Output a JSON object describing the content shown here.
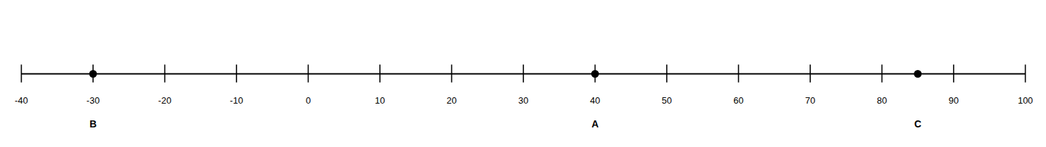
{
  "chart_data": {
    "type": "dot",
    "x": [
      -30,
      40,
      85
    ],
    "labels": [
      "B",
      "A",
      "C"
    ],
    "color": "#000000",
    "xlim": [
      -40,
      100
    ],
    "xticks": [
      -40,
      -30,
      -20,
      -10,
      0,
      10,
      20,
      30,
      40,
      50,
      60,
      70,
      80,
      90,
      100
    ],
    "grid": false,
    "tick_labels": "x"
  }
}
